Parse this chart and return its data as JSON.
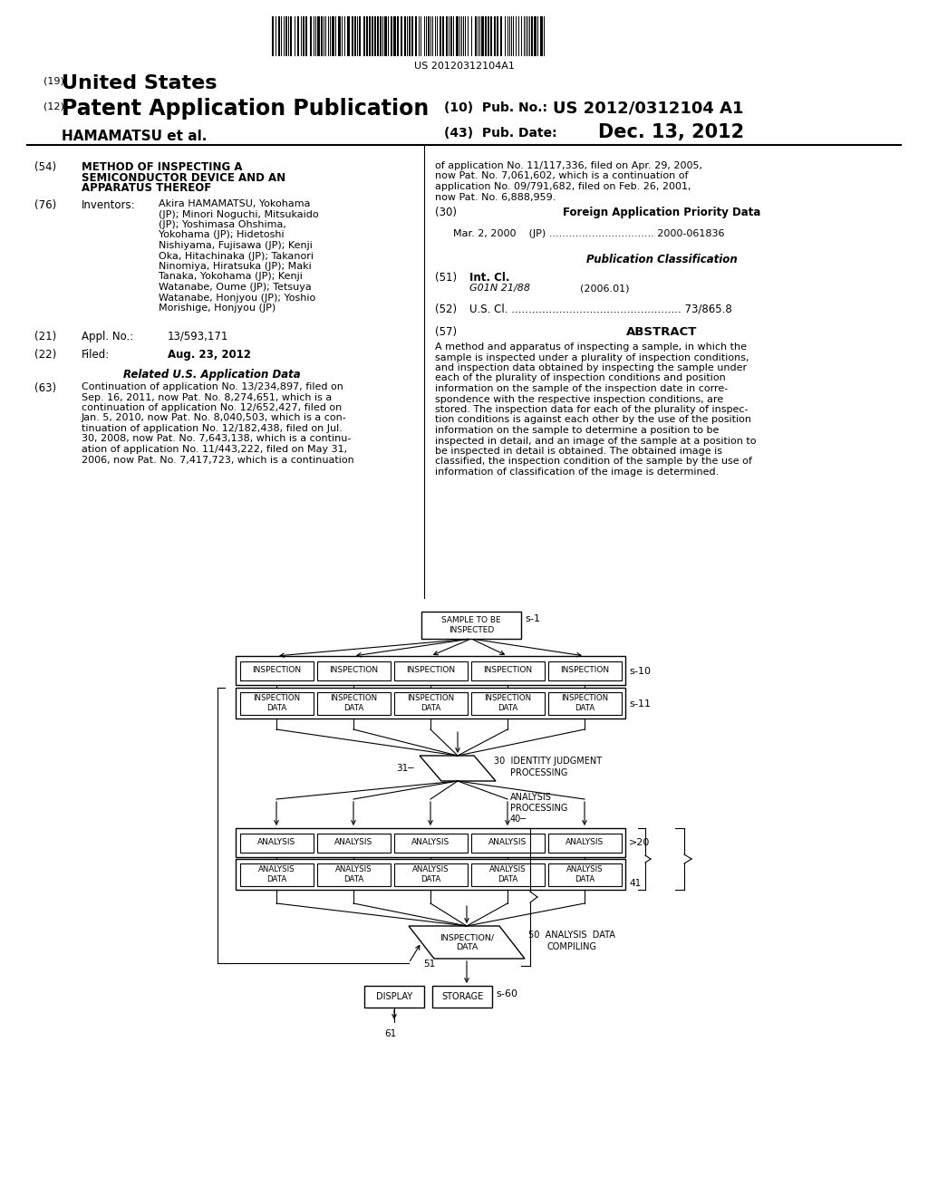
{
  "bg_color": "#ffffff",
  "barcode_text": "US 20120312104A1",
  "title_19": "(19) United States",
  "title_12": "(12) Patent Application Publication",
  "assignee": "HAMAMATSU et al.",
  "pub_no_label": "(10) Pub. No.:",
  "pub_no_value": "US 2012/0312104 A1",
  "pub_date_label": "(43) Pub. Date:",
  "pub_date_value": "Dec. 13, 2012",
  "field54_label": "(54)",
  "field54_title": "METHOD OF INSPECTING A\nSEMICONDUCTOR DEVICE AND AN\nAPPARATUS THEREOF",
  "field76_label": "(76)",
  "field76_title": "Inventors:",
  "field76_text": "Akira HAMAMATSU, Yokohama\n(JP); Minori Noguchi, Mitsukaido\n(JP); Yoshimasa Ohshima,\nYokohama (JP); Hidetoshi\nNishiyama, Fujisawa (JP); Kenji\nOka, Hitachinaka (JP); Takanori\nNinomiya, Hiratsuka (JP); Maki\nTanaka, Yokohama (JP); Kenji\nWatanabe, Oume (JP); Tetsuya\nWatanabe, Honjyou (JP); Yoshio\nMorishige, Honjyou (JP)",
  "field21_label": "(21)",
  "field21_sublabel": "Appl. No.:",
  "field21_value": "13/593,171",
  "field22_label": "(22)",
  "field22_sublabel": "Filed:",
  "field22_value": "Aug. 23, 2012",
  "related_title": "Related U.S. Application Data",
  "field63_label": "(63)",
  "field63_text": "Continuation of application No. 13/234,897, filed on\nSep. 16, 2011, now Pat. No. 8,274,651, which is a\ncontinuation of application No. 12/652,427, filed on\nJan. 5, 2010, now Pat. No. 8,040,503, which is a con-\ntinuation of application No. 12/182,438, filed on Jul.\n30, 2008, now Pat. No. 7,643,138, which is a continu-\nation of application No. 11/443,222, filed on May 31,\n2006, now Pat. No. 7,417,723, which is a continuation",
  "right_col_text1": "of application No. 11/117,336, filed on Apr. 29, 2005,\nnow Pat. No. 7,061,602, which is a continuation of\napplication No. 09/791,682, filed on Feb. 26, 2001,\nnow Pat. No. 6,888,959.",
  "field30_label": "(30)",
  "field30_title": "Foreign Application Priority Data",
  "field30_entry": "Mar. 2, 2000    (JP) ................................ 2000-061836",
  "pub_class_title": "Publication Classification",
  "field51_label": "(51)",
  "field51_sublabel": "Int. Cl.",
  "field51_class": "G01N 21/88",
  "field51_year": "(2006.01)",
  "field52_label": "(52)",
  "field52_text": "U.S. Cl. .................................................. 73/865.8",
  "field57_label": "(57)",
  "field57_title": "ABSTRACT",
  "abstract_text": "A method and apparatus of inspecting a sample, in which the\nsample is inspected under a plurality of inspection conditions,\nand inspection data obtained by inspecting the sample under\neach of the plurality of inspection conditions and position\ninformation on the sample of the inspection date in corre-\nspondence with the respective inspection conditions, are\nstored. The inspection data for each of the plurality of inspec-\ntion conditions is against each other by the use of the position\ninformation on the sample to determine a position to be\ninspected in detail, and an image of the sample at a position to\nbe inspected in detail is obtained. The obtained image is\nclassified, the inspection condition of the sample by the use of\ninformation of classification of the image is determined.",
  "diag_sample_label": "SAMPLE TO BE\nINSPECTED",
  "diag_insp_label": "INSPECTION",
  "diag_idata_label": "INSPECTION\nDATA",
  "diag_analysis_label": "ANALYSIS",
  "diag_adata_label": "ANALYSIS\nDATA",
  "diag_compiling_label": "INSPECTION/\nDATA",
  "diag_display_label": "DISPLAY",
  "diag_storage_label": "STORAGE"
}
